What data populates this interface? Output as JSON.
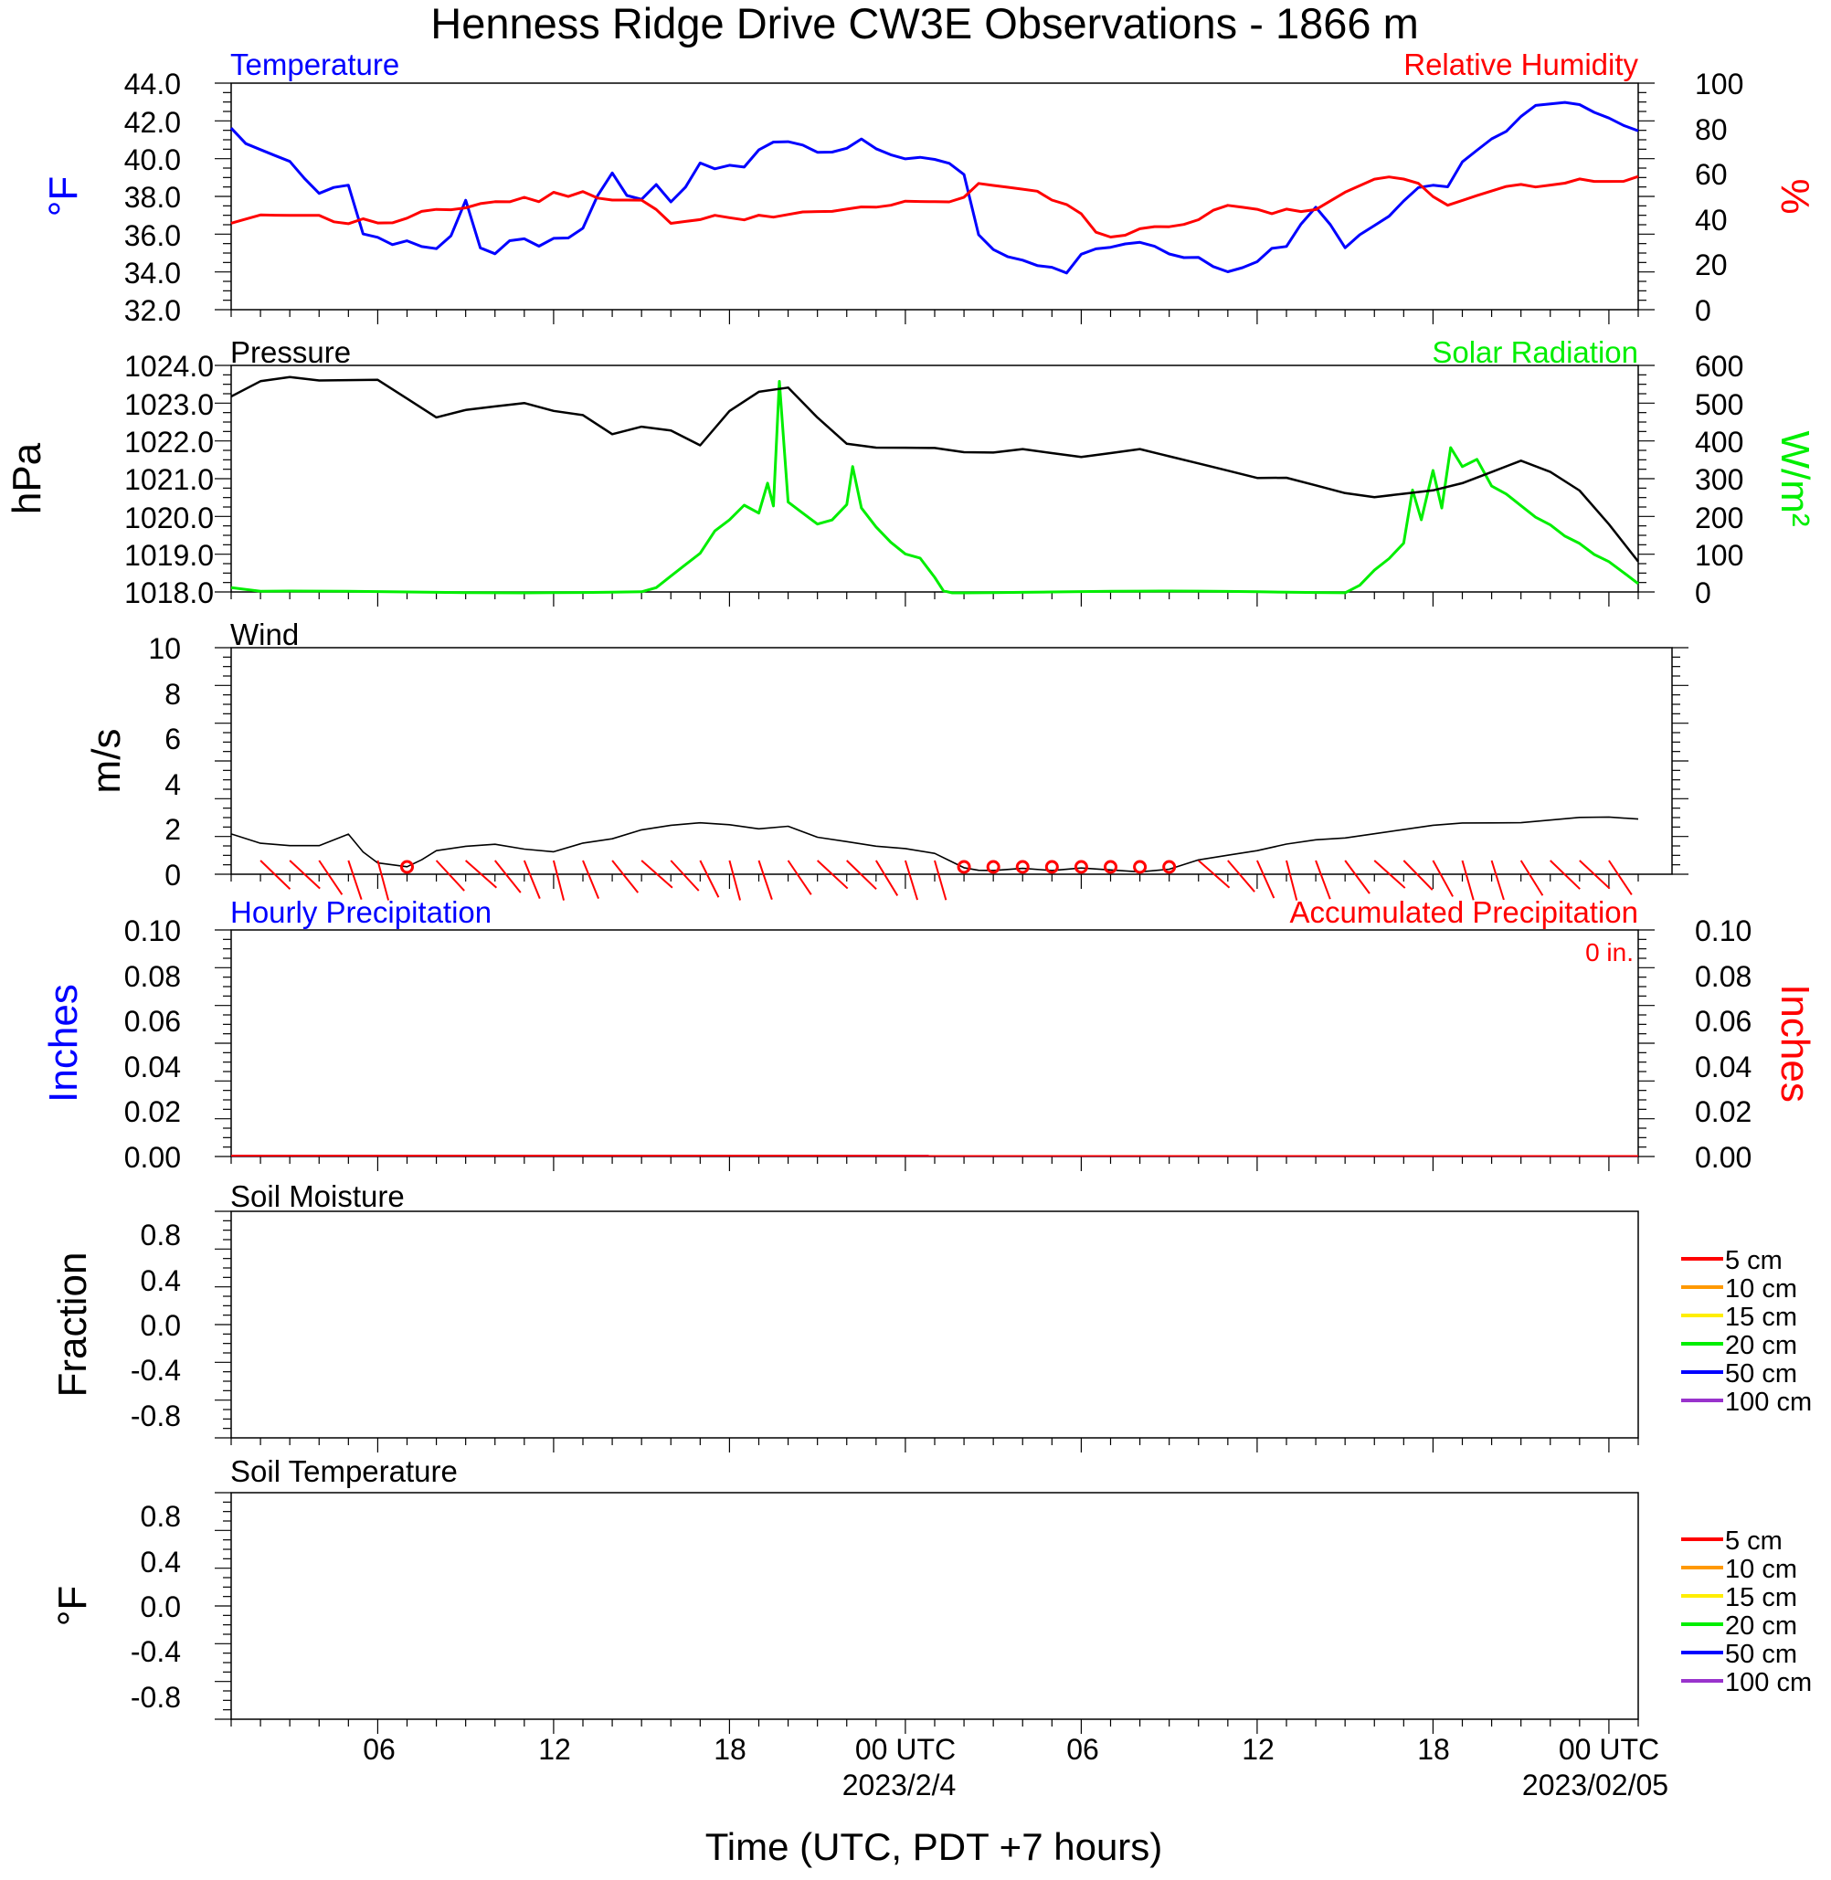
{
  "title": "Henness Ridge Drive CW3E Observations - 1866 m",
  "colors": {
    "temperature": "#0000ff",
    "humidity": "#ff0000",
    "pressure": "#000000",
    "solar": "#00ee00",
    "wind": "#000000",
    "barb": "#ff0000",
    "precip_hourly": "#0000ff",
    "precip_accum": "#ff0000"
  },
  "xaxis": {
    "tick_labels": [
      "06",
      "12",
      "18",
      "00 UTC",
      "06",
      "12",
      "18",
      "00 UTC"
    ],
    "date_labels": [
      "2023/2/4",
      "2023/02/05"
    ],
    "label": "Time (UTC, PDT +7 hours)"
  },
  "panels": {
    "temperature": {
      "left_title": "Temperature",
      "right_title": "Relative Humidity",
      "left_ylabel": "°F",
      "right_ylabel": "%",
      "left_ticks": [
        "44.0",
        "42.0",
        "40.0",
        "38.0",
        "36.0",
        "34.0",
        "32.0"
      ],
      "right_ticks": [
        "100",
        "80",
        "60",
        "40",
        "20",
        "0"
      ]
    },
    "pressure": {
      "left_title": "Pressure",
      "right_title": "Solar Radiation",
      "left_ylabel": "hPa",
      "right_ylabel": "W/m²",
      "left_ticks": [
        "1024.0",
        "1023.0",
        "1022.0",
        "1021.0",
        "1020.0",
        "1019.0",
        "1018.0"
      ],
      "right_ticks": [
        "600",
        "500",
        "400",
        "300",
        "200",
        "100",
        "0"
      ]
    },
    "wind": {
      "title": "Wind",
      "ylabel": "m/s",
      "ticks": [
        "10",
        "8",
        "6",
        "4",
        "2",
        "0"
      ]
    },
    "precip": {
      "left_title": "Hourly Precipitation",
      "right_title": "Accumulated Precipitation",
      "accum_note": "0 in.",
      "left_ylabel": "Inches",
      "right_ylabel": "Inches",
      "ticks": [
        "0.10",
        "0.08",
        "0.06",
        "0.04",
        "0.02",
        "0.00"
      ]
    },
    "soil_moisture": {
      "title": "Soil Moisture",
      "ylabel": "Fraction",
      "ticks": [
        "0.8",
        "0.4",
        "0.0",
        "-0.4",
        "-0.8"
      ]
    },
    "soil_temp": {
      "title": "Soil Temperature",
      "ylabel": "°F",
      "ticks": [
        "0.8",
        "0.4",
        "0.0",
        "-0.4",
        "-0.8"
      ]
    }
  },
  "legend": [
    {
      "label": "5 cm",
      "color": "#ff0000"
    },
    {
      "label": "10 cm",
      "color": "#ff9900"
    },
    {
      "label": "15 cm",
      "color": "#ffee00"
    },
    {
      "label": "20 cm",
      "color": "#00ee00"
    },
    {
      "label": "50 cm",
      "color": "#0000ff"
    },
    {
      "label": "100 cm",
      "color": "#9933cc"
    }
  ],
  "chart_data": [
    {
      "type": "line",
      "panel": "temperature",
      "x_unit": "hours since 2023-02-03 01 UTC",
      "xlim": [
        0,
        48
      ],
      "series": [
        {
          "name": "Temperature",
          "axis": "left",
          "ylim": [
            32,
            44
          ],
          "x": [
            0,
            0.5,
            1,
            1.5,
            2,
            2.5,
            3,
            3.5,
            4,
            4.5,
            5,
            5.5,
            6,
            6.5,
            7,
            7.5,
            8,
            8.5,
            9,
            9.5,
            10,
            10.5,
            11,
            11.5,
            12,
            12.5,
            13,
            13.5,
            14,
            14.5,
            15,
            15.5,
            16,
            16.5,
            17,
            17.5,
            18,
            18.5,
            19,
            19.5,
            20,
            20.5,
            21,
            21.5,
            22,
            22.5,
            23,
            23.5,
            24,
            24.5,
            25,
            25.5,
            26,
            26.5,
            27,
            27.5,
            28,
            28.5,
            29,
            29.5,
            30,
            30.5,
            31,
            31.5,
            32,
            32.5,
            33,
            33.5,
            34,
            34.5,
            35,
            35.5,
            36,
            36.5,
            37,
            37.5,
            38,
            38.5,
            39,
            39.5,
            40,
            40.5,
            41,
            41.5,
            42,
            42.5,
            43,
            43.5,
            44,
            44.5,
            45,
            45.5,
            46,
            46.5,
            47,
            47.5,
            48
          ],
          "y": [
            41.6,
            40.8,
            40.5,
            40.2,
            39.9,
            39.0,
            38.2,
            38.5,
            38.6,
            36.0,
            35.8,
            35.4,
            35.6,
            35.3,
            35.2,
            35.9,
            37.8,
            35.3,
            35.0,
            35.7,
            35.8,
            35.4,
            35.8,
            35.8,
            36.3,
            38.0,
            39.2,
            38.0,
            37.8,
            38.6,
            37.7,
            38.5,
            39.8,
            39.5,
            39.7,
            39.6,
            40.5,
            40.9,
            40.9,
            40.7,
            40.3,
            40.3,
            40.5,
            41.0,
            40.5,
            40.2,
            40.0,
            40.1,
            40.0,
            39.8,
            39.2,
            36.0,
            35.2,
            34.8,
            34.6,
            34.3,
            34.2,
            33.9,
            34.9,
            35.2,
            35.3,
            35.5,
            35.6,
            35.4,
            35.0,
            34.8,
            34.8,
            34.3,
            34.0,
            34.2,
            34.5,
            35.2,
            35.3,
            36.5,
            37.4,
            36.5,
            35.3,
            36.0,
            36.5,
            37.0,
            37.8,
            38.5,
            38.6,
            38.5,
            39.8,
            40.4,
            41.0,
            41.4,
            42.2,
            42.8,
            42.9,
            43.0,
            42.9,
            42.5,
            42.2,
            41.8,
            41.5
          ]
        },
        {
          "name": "Relative Humidity",
          "axis": "right",
          "ylim": [
            0,
            100
          ],
          "x": [
            0,
            0.5,
            1,
            1.5,
            2,
            2.5,
            3,
            3.5,
            4,
            4.5,
            5,
            5.5,
            6,
            6.5,
            7,
            7.5,
            8,
            8.5,
            9,
            9.5,
            10,
            10.5,
            11,
            11.5,
            12,
            12.5,
            13,
            13.5,
            14,
            14.5,
            15,
            15.5,
            16,
            16.5,
            17,
            17.5,
            18,
            18.5,
            19,
            19.5,
            20,
            20.5,
            21,
            21.5,
            22,
            22.5,
            23,
            23.5,
            24,
            24.5,
            25,
            25.5,
            26,
            26.5,
            27,
            27.5,
            28,
            28.5,
            29,
            29.5,
            30,
            30.5,
            31,
            31.5,
            32,
            32.5,
            33,
            33.5,
            34,
            34.5,
            35,
            35.5,
            36,
            36.5,
            37,
            37.5,
            38,
            38.5,
            39,
            39.5,
            40,
            40.5,
            41,
            41.5,
            42,
            42.5,
            43,
            43.5,
            44,
            44.5,
            45,
            45.5,
            46,
            46.5,
            47,
            47.5,
            48
          ],
          "y": [
            38,
            40,
            42,
            42,
            42,
            42,
            42,
            39,
            38,
            40,
            38,
            38,
            40,
            43,
            44,
            44,
            45,
            47,
            48,
            48,
            50,
            48,
            52,
            50,
            52,
            49,
            48,
            48,
            48,
            44,
            38,
            39,
            40,
            42,
            41,
            40,
            42,
            41,
            42,
            43,
            43,
            43,
            44,
            45,
            45,
            46,
            48,
            48,
            48,
            48,
            50,
            56,
            55,
            54,
            53,
            52,
            48,
            46,
            42,
            34,
            32,
            33,
            36,
            37,
            37,
            38,
            40,
            44,
            46,
            45,
            44,
            42,
            44,
            43,
            44,
            48,
            52,
            55,
            58,
            59,
            58,
            56,
            50,
            46,
            48,
            50,
            52,
            54,
            55,
            54,
            55,
            56,
            58,
            57,
            57,
            57,
            59
          ]
        }
      ]
    },
    {
      "type": "line",
      "panel": "pressure",
      "x_unit": "hours since 2023-02-03 01 UTC",
      "xlim": [
        0,
        48
      ],
      "series": [
        {
          "name": "Pressure",
          "axis": "left",
          "ylim": [
            1018,
            1024
          ],
          "x": [
            0,
            1,
            2,
            3,
            4,
            5,
            6,
            7,
            8,
            9,
            10,
            11,
            12,
            13,
            14,
            15,
            16,
            17,
            18,
            19,
            20,
            21,
            22,
            23,
            24,
            25,
            26,
            27,
            28,
            29,
            30,
            31,
            32,
            33,
            34,
            35,
            36,
            37,
            38,
            39,
            40,
            41,
            42,
            43,
            44,
            45,
            46,
            47,
            48
          ],
          "y": [
            1023.2,
            1023.6,
            1023.7,
            1023.6,
            1023.6,
            1023.6,
            1023.1,
            1022.6,
            1022.8,
            1022.9,
            1023.0,
            1022.8,
            1022.7,
            1022.2,
            1022.4,
            1022.3,
            1021.9,
            1022.8,
            1023.3,
            1023.4,
            1022.6,
            1021.9,
            1021.8,
            1021.8,
            1021.8,
            1021.7,
            1021.7,
            1021.8,
            1021.7,
            1021.6,
            1021.7,
            1021.8,
            1021.6,
            1021.4,
            1021.2,
            1021.0,
            1021.0,
            1020.8,
            1020.6,
            1020.5,
            1020.6,
            1020.7,
            1020.9,
            1021.2,
            1021.5,
            1021.2,
            1020.7,
            1019.8,
            1018.8
          ]
        },
        {
          "name": "Solar Radiation",
          "axis": "right",
          "ylim": [
            0,
            600
          ],
          "x": [
            0,
            1,
            2,
            3,
            4,
            5,
            6,
            7,
            8,
            9,
            10,
            11,
            12,
            13,
            14,
            14.5,
            15,
            15.5,
            16,
            16.5,
            17,
            17.5,
            18,
            18.3,
            18.5,
            18.7,
            19,
            19.5,
            20,
            20.5,
            21,
            21.2,
            21.5,
            22,
            22.5,
            23,
            23.5,
            24,
            24.3,
            24.6,
            25,
            26,
            27,
            28,
            29,
            30,
            31,
            32,
            33,
            34,
            35,
            36,
            37,
            38,
            38.5,
            39,
            39.5,
            40,
            40.3,
            40.6,
            41,
            41.3,
            41.6,
            42,
            42.5,
            43,
            43.5,
            44,
            44.5,
            45,
            45.5,
            46,
            46.5,
            47,
            47.5,
            48
          ],
          "y": [
            10,
            0,
            0,
            0,
            0,
            0,
            0,
            0,
            0,
            0,
            0,
            0,
            0,
            0,
            0,
            10,
            40,
            70,
            100,
            160,
            190,
            230,
            210,
            290,
            230,
            560,
            240,
            210,
            180,
            190,
            230,
            330,
            220,
            170,
            130,
            100,
            90,
            40,
            5,
            0,
            0,
            0,
            0,
            0,
            0,
            0,
            0,
            0,
            0,
            0,
            0,
            0,
            0,
            0,
            20,
            60,
            90,
            130,
            270,
            190,
            320,
            220,
            380,
            330,
            350,
            280,
            260,
            230,
            200,
            180,
            150,
            130,
            100,
            80,
            50,
            20
          ]
        }
      ]
    },
    {
      "type": "line",
      "panel": "wind",
      "x_unit": "hours since 2023-02-03 01 UTC",
      "xlim": [
        0,
        48
      ],
      "ylim": [
        0,
        10
      ],
      "series": [
        {
          "name": "Wind",
          "x": [
            0,
            1,
            2,
            3,
            4,
            4.5,
            5,
            5.5,
            6,
            6.5,
            7,
            8,
            9,
            10,
            11,
            12,
            13,
            14,
            15,
            16,
            17,
            18,
            19,
            20,
            21,
            22,
            23,
            24,
            24.5,
            25,
            25.5,
            26,
            27,
            28,
            29,
            30,
            31,
            32,
            33,
            34,
            35,
            36,
            37,
            38,
            39,
            40,
            41,
            42,
            43,
            44,
            45,
            46,
            47,
            48
          ],
          "y": [
            1.8,
            1.4,
            1.3,
            1.3,
            1.8,
            1.0,
            0.5,
            0.4,
            0.3,
            0.6,
            1.0,
            1.2,
            1.3,
            1.1,
            1.0,
            1.4,
            1.6,
            2.0,
            2.2,
            2.3,
            2.2,
            2.0,
            2.1,
            1.6,
            1.4,
            1.2,
            1.1,
            0.9,
            0.6,
            0.3,
            0.2,
            0.2,
            0.3,
            0.2,
            0.3,
            0.2,
            0.1,
            0.2,
            0.6,
            0.8,
            1.0,
            1.3,
            1.5,
            1.6,
            1.8,
            2.0,
            2.2,
            2.3,
            2.3,
            2.3,
            2.4,
            2.5,
            2.5,
            2.4
          ]
        }
      ]
    },
    {
      "type": "line",
      "panel": "precip",
      "x_unit": "hours since 2023-02-03 01 UTC",
      "xlim": [
        0,
        48
      ],
      "ylim": [
        0,
        0.1
      ],
      "series": [
        {
          "name": "Hourly Precipitation",
          "x": [
            0,
            48
          ],
          "y": [
            0,
            0
          ]
        },
        {
          "name": "Accumulated Precipitation",
          "x": [
            0,
            48
          ],
          "y": [
            0,
            0
          ]
        }
      ]
    }
  ]
}
